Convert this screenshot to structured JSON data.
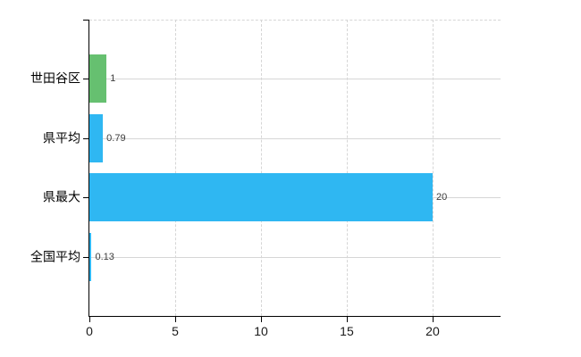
{
  "chart_data": {
    "type": "bar",
    "orientation": "horizontal",
    "title": "",
    "xlabel": "",
    "ylabel": "",
    "legend": false,
    "grid": true,
    "categories": [
      "世田谷区",
      "県平均",
      "県最大",
      "全国平均"
    ],
    "values": [
      1,
      0.79,
      20,
      0.13
    ],
    "value_labels": [
      "1",
      "0.79",
      "20",
      "0.13"
    ],
    "bar_colors": [
      "#66c070",
      "#2fb7f2",
      "#2fb7f2",
      "#2fb7f2"
    ],
    "x_ticks": [
      0,
      5,
      10,
      15,
      20
    ],
    "x_tick_labels": [
      "0",
      "5",
      "10",
      "15",
      "20"
    ],
    "xlim": [
      0,
      23.96
    ],
    "colors": {
      "background": "#ffffff",
      "axis": "#000000",
      "gridline": "#d6d6d6",
      "category_label": "#000000",
      "value_label": "#3d3d3d",
      "tick_label": "#1a1a1a",
      "bar_green": "#66c070",
      "bar_blue": "#2fb7f2"
    }
  }
}
